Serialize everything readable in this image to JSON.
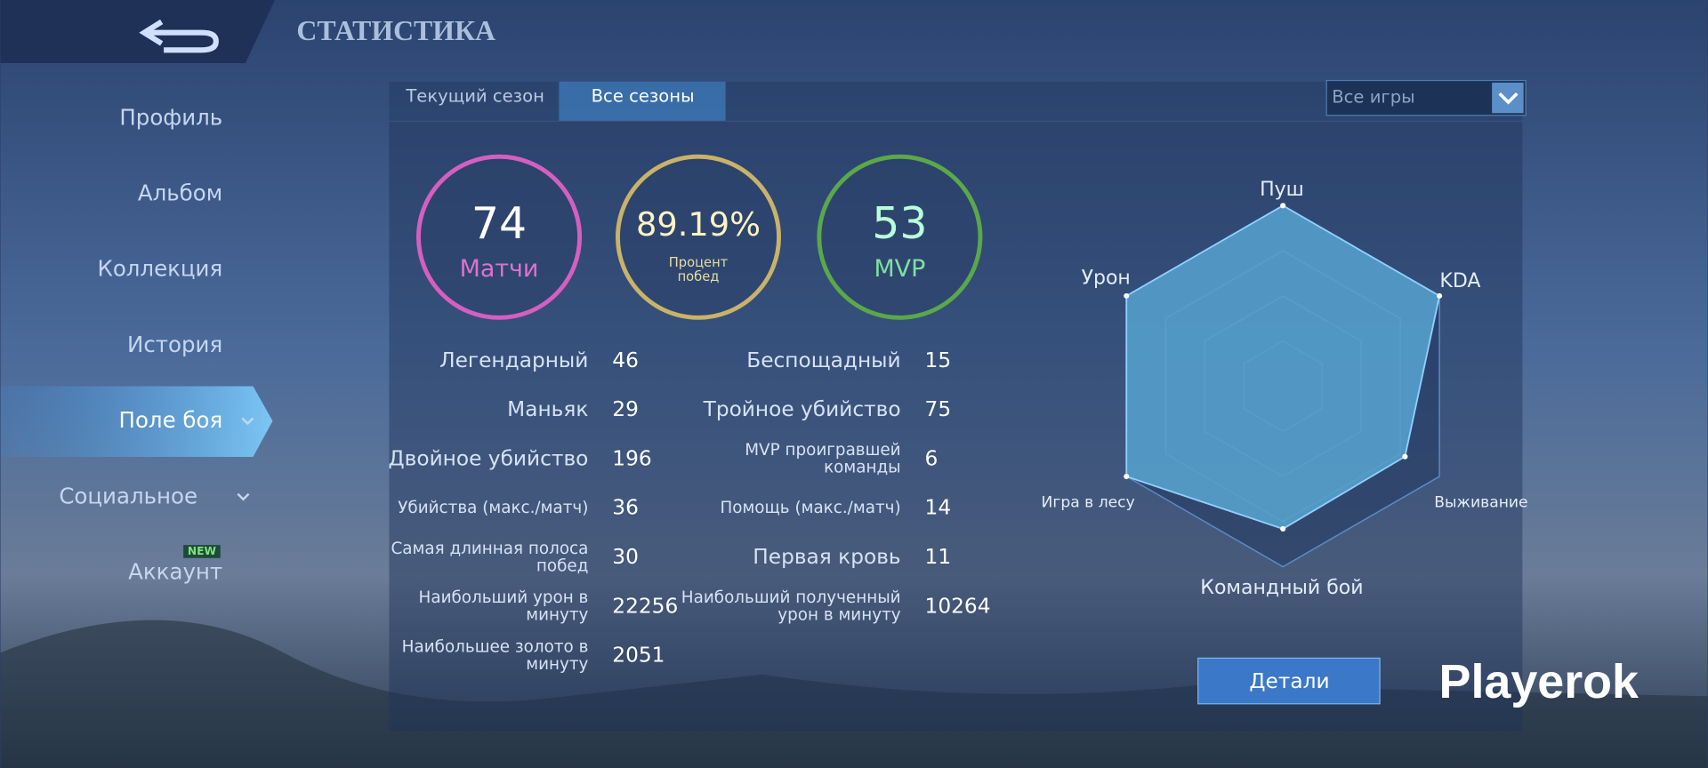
{
  "header": {
    "title": "СТАТИСТИКА"
  },
  "sidebar": {
    "items": [
      "Профиль",
      "Альбом",
      "Коллекция",
      "История",
      "Поле боя",
      "Социальное",
      "Аккаунт"
    ],
    "badge": "NEW"
  },
  "tabs": [
    "Текущий сезон",
    "Все сезоны"
  ],
  "filter": "Все игры",
  "summary": [
    {
      "value": 74,
      "label": [
        "Матчи"
      ]
    },
    {
      "value": "89.19%",
      "label": [
        "Процент",
        "побед"
      ]
    },
    {
      "value": 53,
      "label": [
        "MVP"
      ]
    }
  ],
  "stats": {
    "left": [
      {
        "label": [
          "Легендарный"
        ],
        "value": 46
      },
      {
        "label": [
          "Маньяк"
        ],
        "value": 29
      },
      {
        "label": [
          "Двойное убийство"
        ],
        "value": 196
      },
      {
        "label": [
          "Убийства (макс./матч)"
        ],
        "value": 36
      },
      {
        "label": [
          "Самая длинная полоса",
          "побед"
        ],
        "value": 30
      },
      {
        "label": [
          "Наибольший урон в",
          "минуту"
        ],
        "value": 22256
      },
      {
        "label": [
          "Наибольшее золото в",
          "минуту"
        ],
        "value": 2051
      }
    ],
    "right": [
      {
        "label": [
          "Беспощадный"
        ],
        "value": 15
      },
      {
        "label": [
          "Тройное убийство"
        ],
        "value": 75
      },
      {
        "label": [
          "MVP проигравшей",
          "команды"
        ],
        "value": 6
      },
      {
        "label": [
          "Помощь (макс./матч)"
        ],
        "value": 14
      },
      {
        "label": [
          "Первая кровь"
        ],
        "value": 11
      },
      {
        "label": [
          "Наибольший полученный",
          "урон в минуту"
        ],
        "value": 10264
      }
    ]
  },
  "chart_data": {
    "type": "radar",
    "axes": [
      "Пуш",
      "KDA",
      "Выживание",
      "Командный бой",
      "Игра в лесу",
      "Урон"
    ],
    "values": [
      100,
      100,
      78,
      79,
      100,
      100
    ],
    "rlim": [
      0,
      100
    ],
    "rticks": [
      25,
      50,
      75,
      100
    ],
    "color": "#5fb3e0"
  },
  "button": "Детали",
  "watermark": "Playerok"
}
